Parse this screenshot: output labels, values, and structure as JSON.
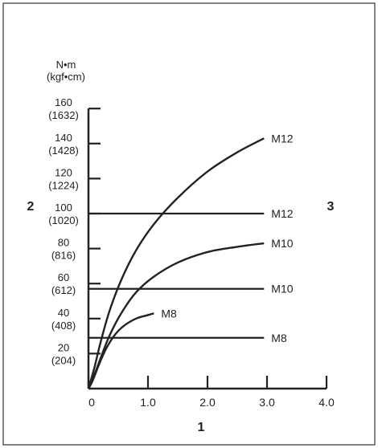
{
  "chart_data": {
    "type": "line",
    "y_unit_line1": "N•m",
    "y_unit_line2": "(kgf•cm)",
    "y_ticks": [
      {
        "value": 20,
        "label": "20",
        "sublabel": "(204)"
      },
      {
        "value": 40,
        "label": "40",
        "sublabel": "(408)"
      },
      {
        "value": 60,
        "label": "60",
        "sublabel": "(612)"
      },
      {
        "value": 80,
        "label": "80",
        "sublabel": "(816)"
      },
      {
        "value": 100,
        "label": "100",
        "sublabel": "(1020)"
      },
      {
        "value": 120,
        "label": "120",
        "sublabel": "(1224)"
      },
      {
        "value": 140,
        "label": "140",
        "sublabel": "(1428)"
      },
      {
        "value": 160,
        "label": "160",
        "sublabel": "(1632)"
      }
    ],
    "x_ticks": [
      {
        "value": 0,
        "label": "0"
      },
      {
        "value": 1,
        "label": "1.0"
      },
      {
        "value": 2,
        "label": "2.0"
      },
      {
        "value": 3,
        "label": "3.0"
      },
      {
        "value": 4,
        "label": "4.0"
      }
    ],
    "xlim": [
      0,
      4
    ],
    "ylim": [
      0,
      160
    ],
    "xlabel": "1",
    "left_marker": "2",
    "right_marker": "3",
    "curves": [
      {
        "name": "M8",
        "x": [
          0,
          0.05,
          0.1,
          0.18,
          0.3,
          0.45,
          0.6,
          0.8,
          1.0,
          1.1
        ],
        "y": [
          0,
          3,
          7,
          14,
          23,
          31,
          36,
          40,
          42,
          43
        ]
      },
      {
        "name": "M10",
        "x": [
          0,
          0.1,
          0.2,
          0.35,
          0.55,
          0.8,
          1.1,
          1.5,
          2.0,
          2.5,
          2.95
        ],
        "y": [
          0,
          8,
          17,
          30,
          43,
          55,
          64,
          72,
          78,
          81,
          83
        ]
      },
      {
        "name": "M12",
        "x": [
          0,
          0.1,
          0.2,
          0.35,
          0.55,
          0.8,
          1.1,
          1.5,
          2.0,
          2.5,
          2.95
        ],
        "y": [
          0,
          12,
          26,
          44,
          62,
          79,
          94,
          109,
          124,
          135,
          143
        ]
      }
    ],
    "lines": [
      {
        "name": "M8",
        "y": 29,
        "x_end": 2.95
      },
      {
        "name": "M10",
        "y": 57,
        "x_end": 2.95
      },
      {
        "name": "M12",
        "y": 100,
        "x_end": 2.95
      }
    ]
  }
}
